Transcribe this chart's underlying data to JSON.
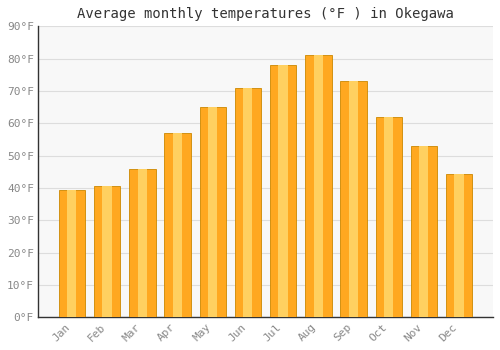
{
  "title": "Average monthly temperatures (°F ) in Okegawa",
  "months": [
    "Jan",
    "Feb",
    "Mar",
    "Apr",
    "May",
    "Jun",
    "Jul",
    "Aug",
    "Sep",
    "Oct",
    "Nov",
    "Dec"
  ],
  "values": [
    39.5,
    40.5,
    46,
    57,
    65,
    71,
    78,
    81,
    73,
    62,
    53,
    44.5
  ],
  "bar_color_main": "#FFA820",
  "bar_color_light": "#FFD060",
  "bar_edge_color": "#CC8800",
  "ylim": [
    0,
    90
  ],
  "yticks": [
    0,
    10,
    20,
    30,
    40,
    50,
    60,
    70,
    80,
    90
  ],
  "ytick_labels": [
    "0°F",
    "10°F",
    "20°F",
    "30°F",
    "40°F",
    "50°F",
    "60°F",
    "70°F",
    "80°F",
    "90°F"
  ],
  "background_color": "#ffffff",
  "plot_bg_color": "#f8f8f8",
  "grid_color": "#dddddd",
  "title_fontsize": 10,
  "tick_fontsize": 8,
  "bar_width": 0.75
}
